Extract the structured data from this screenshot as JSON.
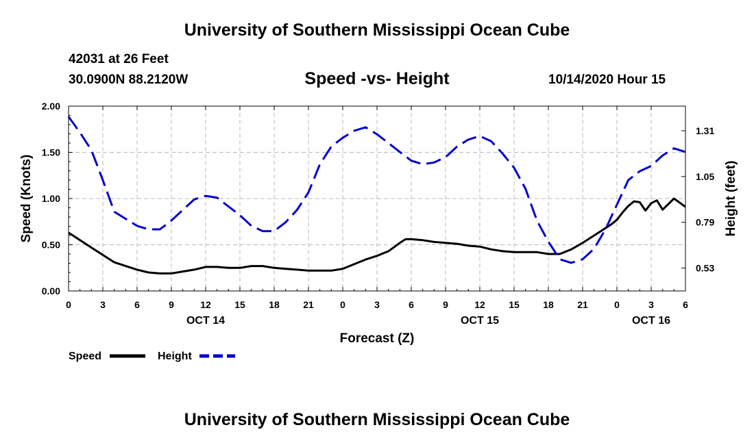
{
  "header": {
    "top_title": "University of Southern Mississippi Ocean Cube",
    "station": "42031 at 26 Feet",
    "coordinates": "30.0900N 88.2120W",
    "datetime": "10/14/2020 Hour 15",
    "bottom_title": "University of Southern Mississippi Ocean Cube"
  },
  "chart_data": {
    "type": "line",
    "title": "Speed -vs- Height",
    "xlabel": "Forecast (Z)",
    "ylabel": "Speed (Knots)",
    "y2label": "Height (feet)",
    "xlim": [
      0,
      54
    ],
    "ylim": [
      0,
      2.0
    ],
    "y2lim": [
      0.4,
      1.45
    ],
    "x_ticks": [
      0,
      3,
      6,
      9,
      12,
      15,
      18,
      21,
      24,
      27,
      30,
      33,
      36,
      39,
      42,
      45,
      48,
      51,
      54
    ],
    "x_tick_labels": [
      "0",
      "3",
      "6",
      "9",
      "12",
      "15",
      "18",
      "21",
      "0",
      "3",
      "6",
      "9",
      "12",
      "15",
      "18",
      "21",
      "0",
      "3",
      "6"
    ],
    "day_labels": [
      {
        "x": 12,
        "label": "OCT 14"
      },
      {
        "x": 36,
        "label": "OCT 15"
      },
      {
        "x": 51,
        "label": "OCT 16"
      }
    ],
    "y_ticks": [
      0.0,
      0.5,
      1.0,
      1.5,
      2.0
    ],
    "y_tick_labels": [
      "0.00",
      "0.50",
      "1.00",
      "1.50",
      "2.00"
    ],
    "y2_ticks": [
      0.53,
      0.79,
      1.05,
      1.31
    ],
    "y2_tick_labels": [
      "0.53",
      "0.79",
      "1.05",
      "1.31"
    ],
    "grid": true,
    "legend": "bottom-left",
    "series": [
      {
        "name": "Speed",
        "axis": "left",
        "color": "#000000",
        "style": "solid",
        "x": [
          0,
          1,
          2,
          3,
          4,
          5,
          6,
          7,
          8,
          9,
          10,
          11,
          12,
          13,
          14,
          15,
          16,
          17,
          18,
          19,
          20,
          21,
          22,
          23,
          24,
          25,
          26,
          27,
          28,
          29,
          29.5,
          30,
          31,
          32,
          33,
          34,
          35,
          36,
          37,
          38,
          39,
          40,
          41,
          42,
          43,
          44,
          45,
          46,
          47,
          47.5,
          48,
          48.5,
          49,
          49.5,
          50,
          50.5,
          51,
          51.5,
          52,
          53,
          54
        ],
        "values": [
          0.63,
          0.55,
          0.47,
          0.39,
          0.31,
          0.27,
          0.23,
          0.2,
          0.19,
          0.19,
          0.21,
          0.23,
          0.26,
          0.26,
          0.25,
          0.25,
          0.27,
          0.27,
          0.25,
          0.24,
          0.23,
          0.22,
          0.22,
          0.22,
          0.24,
          0.29,
          0.34,
          0.38,
          0.43,
          0.52,
          0.56,
          0.56,
          0.55,
          0.53,
          0.52,
          0.51,
          0.49,
          0.48,
          0.45,
          0.43,
          0.42,
          0.42,
          0.42,
          0.4,
          0.4,
          0.45,
          0.52,
          0.6,
          0.68,
          0.72,
          0.77,
          0.85,
          0.92,
          0.97,
          0.96,
          0.87,
          0.95,
          0.98,
          0.88,
          1.0,
          0.91
        ]
      },
      {
        "name": "Height",
        "axis": "right",
        "color": "#0000cc",
        "style": "dashed",
        "x": [
          0,
          1,
          2,
          3,
          4,
          5,
          6,
          7,
          8,
          9,
          10,
          11,
          12,
          13,
          14,
          15,
          16,
          17,
          18,
          19,
          20,
          21,
          22,
          23,
          24,
          25,
          26,
          27,
          28,
          29,
          30,
          31,
          32,
          33,
          34,
          35,
          36,
          37,
          38,
          39,
          40,
          41,
          42,
          43,
          44,
          45,
          46,
          47,
          48,
          49,
          50,
          51,
          52,
          53,
          54
        ],
        "values": [
          1.39,
          1.3,
          1.2,
          1.03,
          0.85,
          0.81,
          0.77,
          0.75,
          0.75,
          0.8,
          0.86,
          0.92,
          0.94,
          0.93,
          0.88,
          0.83,
          0.77,
          0.74,
          0.74,
          0.79,
          0.86,
          0.96,
          1.12,
          1.22,
          1.27,
          1.31,
          1.33,
          1.29,
          1.24,
          1.19,
          1.14,
          1.12,
          1.13,
          1.16,
          1.22,
          1.26,
          1.28,
          1.25,
          1.18,
          1.1,
          0.98,
          0.8,
          0.68,
          0.58,
          0.56,
          0.58,
          0.64,
          0.75,
          0.89,
          1.03,
          1.08,
          1.11,
          1.17,
          1.21,
          1.19
        ]
      }
    ]
  }
}
